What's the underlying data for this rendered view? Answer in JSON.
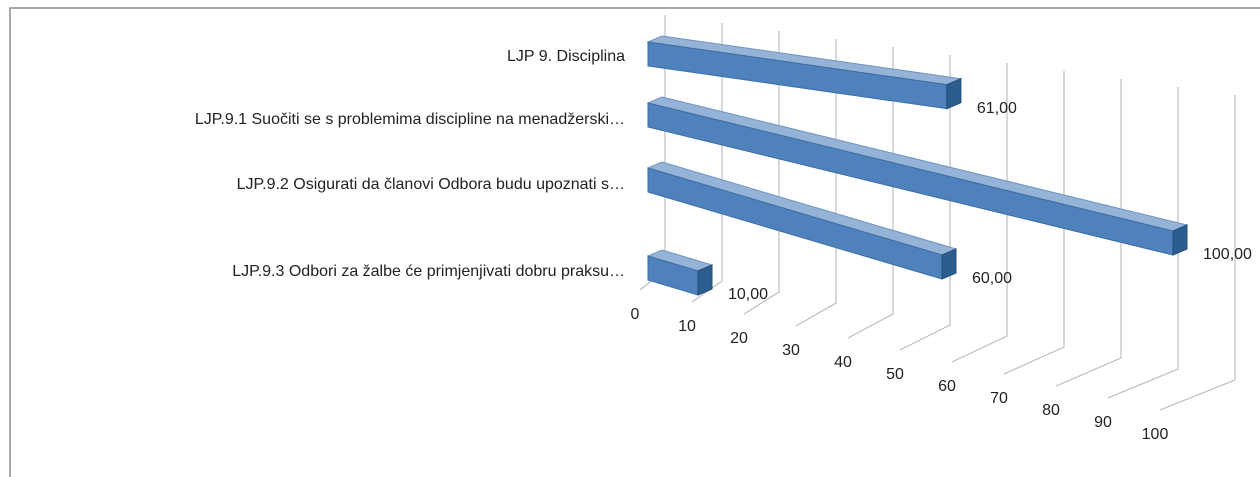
{
  "chart_data": {
    "type": "bar3d_horizontal",
    "categories": [
      "LJP 9. Disciplina",
      "LJP.9.1 Suočiti se s problemima discipline na menadžerski…",
      "LJP.9.2 Osigurati da članovi Odbora budu upoznati s…",
      "LJP.9.3 Odbori za žalbe će primjenjivati dobru praksu…"
    ],
    "values": [
      61,
      100,
      60,
      10
    ],
    "value_labels": [
      "61,00",
      "100,00",
      "60,00",
      "10,00"
    ],
    "color": "#4f81bd",
    "xlim": [
      0,
      100
    ],
    "xticks": [
      0,
      10,
      20,
      30,
      40,
      50,
      60,
      70,
      80,
      90,
      100
    ],
    "grid": true
  }
}
